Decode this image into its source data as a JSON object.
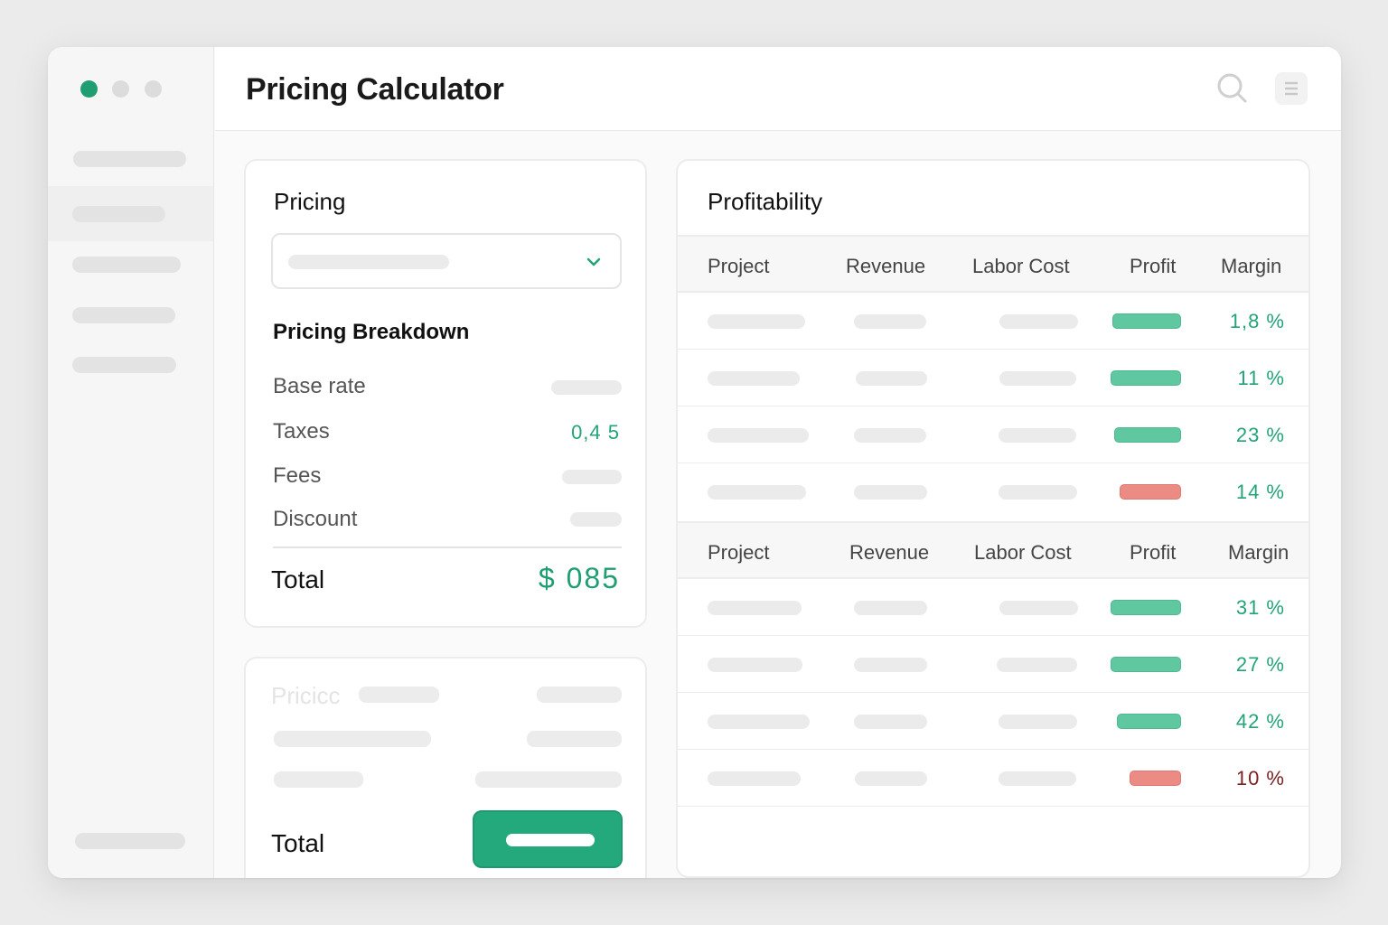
{
  "app": {
    "title": "Pricing Calculator",
    "icons": {
      "search": "search-icon",
      "menu": "hamburger-menu-icon",
      "dropdown": "chevron-down-icon"
    }
  },
  "colors": {
    "accent": "#1f9e72",
    "positive_bar": "#5fc8a1",
    "negative_bar": "#ec8a84",
    "positive_text": "#23a478",
    "negative_text": "#7a2020"
  },
  "pricing": {
    "title": "Pricing",
    "breakdown_title": "Pricing Breakdown",
    "rows": [
      {
        "label": "Base rate",
        "value": ""
      },
      {
        "label": "Taxes",
        "value": "0,4 5"
      },
      {
        "label": "Fees",
        "value": ""
      },
      {
        "label": "Discount",
        "value": ""
      }
    ],
    "total_label": "Total",
    "total_value": "$ 085"
  },
  "pricing_secondary": {
    "title": "Pricicc",
    "total_label": "Total"
  },
  "profitability": {
    "title": "Profitability",
    "columns": [
      "Project",
      "Revenue",
      "Labor Cost",
      "Profit",
      "Margin"
    ],
    "groups": [
      {
        "rows": [
          {
            "profit_status": "positive",
            "margin": "1,8 %"
          },
          {
            "profit_status": "positive",
            "margin": "11 %"
          },
          {
            "profit_status": "positive",
            "margin": "23 %"
          },
          {
            "profit_status": "negative",
            "margin": "14 %"
          }
        ]
      },
      {
        "rows": [
          {
            "profit_status": "positive",
            "margin": "31 %"
          },
          {
            "profit_status": "positive",
            "margin": "27 %"
          },
          {
            "profit_status": "positive",
            "margin": "42 %"
          },
          {
            "profit_status": "negative",
            "margin": "10 %"
          }
        ]
      }
    ]
  }
}
